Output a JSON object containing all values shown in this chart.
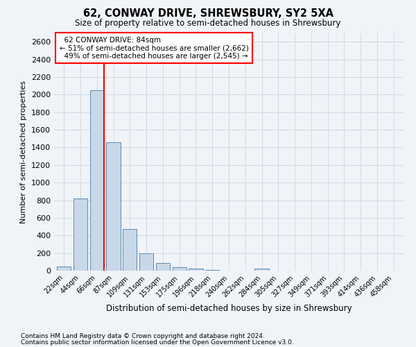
{
  "title": "62, CONWAY DRIVE, SHREWSBURY, SY2 5XA",
  "subtitle": "Size of property relative to semi-detached houses in Shrewsbury",
  "xlabel": "Distribution of semi-detached houses by size in Shrewsbury",
  "ylabel": "Number of semi-detached properties",
  "categories": [
    "22sqm",
    "44sqm",
    "66sqm",
    "87sqm",
    "109sqm",
    "131sqm",
    "153sqm",
    "175sqm",
    "196sqm",
    "218sqm",
    "240sqm",
    "262sqm",
    "284sqm",
    "305sqm",
    "327sqm",
    "349sqm",
    "371sqm",
    "393sqm",
    "414sqm",
    "436sqm",
    "458sqm"
  ],
  "values": [
    50,
    820,
    2050,
    1460,
    470,
    195,
    85,
    40,
    20,
    5,
    0,
    0,
    25,
    0,
    0,
    0,
    0,
    0,
    0,
    0,
    0
  ],
  "bar_color": "#c8d8e8",
  "bar_edge_color": "#5a8ab0",
  "property_label": "62 CONWAY DRIVE: 84sqm",
  "smaller_pct": "51%",
  "smaller_count": "2,662",
  "larger_pct": "49%",
  "larger_count": "2,545",
  "vline_color": "red",
  "annotation_box_color": "white",
  "annotation_box_edge_color": "red",
  "grid_color": "#d0d8e0",
  "background_color": "#f0f4f8",
  "ylim": [
    0,
    2700
  ],
  "yticks": [
    0,
    200,
    400,
    600,
    800,
    1000,
    1200,
    1400,
    1600,
    1800,
    2000,
    2200,
    2400,
    2600
  ],
  "footnote1": "Contains HM Land Registry data © Crown copyright and database right 2024.",
  "footnote2": "Contains public sector information licensed under the Open Government Licence v3.0."
}
